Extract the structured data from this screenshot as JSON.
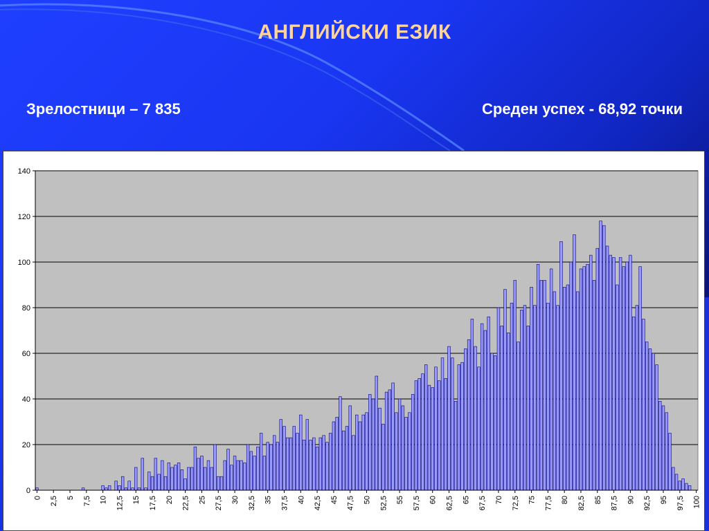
{
  "slide": {
    "title": "АНГЛИЙСКИ ЕЗИК",
    "graduates_text": "Зрелостници – 7 835",
    "average_text": "Среден успех - 68,92 точки"
  },
  "colors": {
    "title": "#ffd49a",
    "bar_fill": "#9999ff",
    "bar_stroke": "#000080",
    "plot_bg": "#c0c0c0"
  },
  "chart_data": {
    "type": "bar",
    "title": "",
    "xlabel": "",
    "ylabel": "",
    "ylim": [
      0,
      140
    ],
    "yticks": [
      0,
      20,
      40,
      60,
      80,
      100,
      120,
      140
    ],
    "x_tick_labels": [
      "0",
      "2,5",
      "5",
      "7,5",
      "10",
      "12,5",
      "15",
      "17,5",
      "20",
      "22,5",
      "25",
      "27,5",
      "30",
      "32,5",
      "35",
      "37,5",
      "40",
      "42,5",
      "45",
      "47,5",
      "50",
      "52,5",
      "55",
      "57,5",
      "60",
      "62,5",
      "65",
      "67,5",
      "70",
      "72,5",
      "75",
      "77,5",
      "80",
      "82,5",
      "85",
      "87,5",
      "90",
      "92,5",
      "95",
      "97,5",
      "100"
    ],
    "grid": true,
    "x_step": 0.5,
    "x_start": 0,
    "values": [
      1,
      0,
      0,
      0,
      0,
      0,
      0,
      0,
      0,
      0,
      0,
      0,
      0,
      0,
      1,
      0,
      0,
      0,
      0,
      0,
      2,
      1,
      2,
      0,
      4,
      2,
      6,
      1,
      4,
      1,
      10,
      1,
      14,
      1,
      8,
      6,
      14,
      7,
      13,
      6,
      12,
      10,
      11,
      12,
      9,
      5,
      10,
      10,
      19,
      14,
      15,
      10,
      13,
      10,
      20,
      6,
      6,
      13,
      18,
      11,
      15,
      13,
      13,
      12,
      20,
      17,
      15,
      19,
      25,
      15,
      21,
      20,
      24,
      21,
      31,
      28,
      23,
      23,
      28,
      25,
      33,
      22,
      31,
      22,
      23,
      19,
      23,
      24,
      21,
      25,
      30,
      32,
      41,
      26,
      28,
      37,
      24,
      33,
      30,
      33,
      34,
      42,
      40,
      50,
      36,
      29,
      43,
      44,
      47,
      34,
      40,
      37,
      32,
      34,
      42,
      48,
      49,
      51,
      55,
      46,
      45,
      54,
      48,
      58,
      49,
      63,
      58,
      39,
      55,
      56,
      62,
      66,
      75,
      63,
      54,
      73,
      70,
      76,
      60,
      59,
      80,
      72,
      88,
      69,
      82,
      92,
      65,
      79,
      81,
      72,
      89,
      81,
      99,
      92,
      92,
      82,
      97,
      87,
      81,
      109,
      89,
      90,
      100,
      112,
      87,
      97,
      98,
      99,
      103,
      92,
      106,
      118,
      116,
      107,
      103,
      102,
      90,
      102,
      98,
      100,
      103,
      76,
      81,
      98,
      75,
      65,
      62,
      60,
      55,
      39,
      37,
      34,
      25,
      10,
      7,
      4,
      5,
      3,
      2,
      0
    ]
  }
}
